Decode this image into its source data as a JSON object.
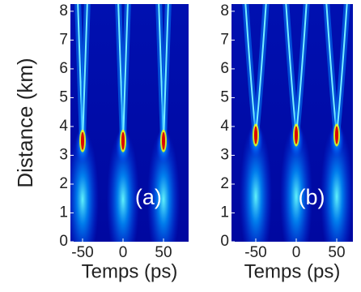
{
  "chart_data": [
    {
      "type": "heatmap",
      "xlabel": "Temps (ps)",
      "ylabel": "Distance (km)",
      "annotation": "(a)",
      "xlim": [
        -65,
        81
      ],
      "ylim": [
        0,
        8.25
      ],
      "xticks": [
        -50,
        0,
        50
      ],
      "yticks": [
        0,
        1,
        2,
        3,
        4,
        5,
        6,
        7,
        8
      ],
      "pulse_centers": [
        -50,
        0,
        50
      ],
      "peak_distance": 3.5
    },
    {
      "type": "heatmap",
      "xlabel": "Temps (ps)",
      "annotation": "(b)",
      "xlim": [
        -80,
        70
      ],
      "ylim": [
        0,
        8.25
      ],
      "xticks": [
        -50,
        0,
        50
      ],
      "yticks": [
        0,
        1,
        2,
        3,
        4,
        5,
        6,
        7,
        8
      ],
      "pulse_centers": [
        -50,
        0,
        50
      ],
      "peak_distance": 3.7
    }
  ]
}
